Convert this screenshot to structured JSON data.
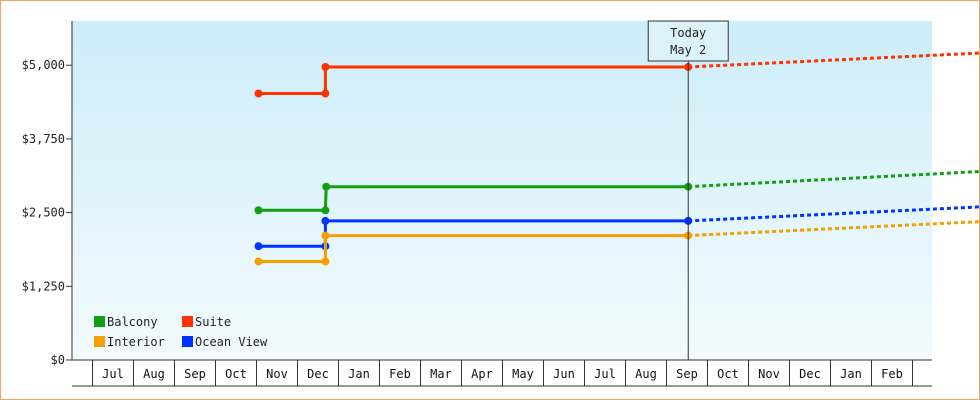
{
  "chart_data": {
    "type": "line",
    "today_marker": {
      "line1": "Today",
      "line2": "May 2",
      "x": 16.03
    },
    "x_labels": [
      "Jul",
      "Aug",
      "Sep",
      "Oct",
      "Nov",
      "Dec",
      "Jan",
      "Feb",
      "Mar",
      "Apr",
      "May",
      "Jun",
      "Jul",
      "Aug",
      "Sep",
      "Oct",
      "Nov",
      "Dec",
      "Jan",
      "Feb"
    ],
    "x_start": 5.55,
    "x_end": 26.52,
    "ylim": [
      0,
      5750
    ],
    "y_ticks": [
      {
        "value": 0,
        "label": "$0"
      },
      {
        "value": 1250,
        "label": "$1,250"
      },
      {
        "value": 2500,
        "label": "$2,500"
      },
      {
        "value": 3750,
        "label": "$3,750"
      },
      {
        "value": 5000,
        "label": "$5,000"
      }
    ],
    "series": [
      {
        "name": "Suite",
        "color": "#ff3300",
        "points": [
          [
            5.55,
            4520
          ],
          [
            7.18,
            4520
          ],
          [
            7.18,
            4970
          ],
          [
            16.03,
            4970
          ]
        ],
        "projection": [
          [
            16.03,
            4970
          ],
          [
            26.52,
            5320
          ]
        ]
      },
      {
        "name": "Balcony",
        "color": "#11a011",
        "points": [
          [
            5.55,
            2540
          ],
          [
            7.18,
            2540
          ],
          [
            7.2,
            2940
          ],
          [
            16.03,
            2940
          ]
        ],
        "projection": [
          [
            16.03,
            2940
          ],
          [
            26.52,
            3320
          ]
        ]
      },
      {
        "name": "Ocean View",
        "color": "#0033ff",
        "points": [
          [
            5.55,
            1930
          ],
          [
            7.18,
            1930
          ],
          [
            7.18,
            2360
          ],
          [
            16.03,
            2360
          ]
        ],
        "projection": [
          [
            16.03,
            2360
          ],
          [
            26.52,
            2710
          ]
        ]
      },
      {
        "name": "Interior",
        "color": "#f5a000",
        "points": [
          [
            5.55,
            1670
          ],
          [
            7.18,
            1670
          ],
          [
            7.18,
            2110
          ],
          [
            16.03,
            2110
          ]
        ],
        "projection": [
          [
            16.03,
            2110
          ],
          [
            26.52,
            2460
          ]
        ]
      }
    ],
    "legend": [
      {
        "name": "Balcony",
        "color": "#11a011"
      },
      {
        "name": "Suite",
        "color": "#ff3300"
      },
      {
        "name": "Interior",
        "color": "#f5a000"
      },
      {
        "name": "Ocean View",
        "color": "#0033ff"
      }
    ]
  }
}
